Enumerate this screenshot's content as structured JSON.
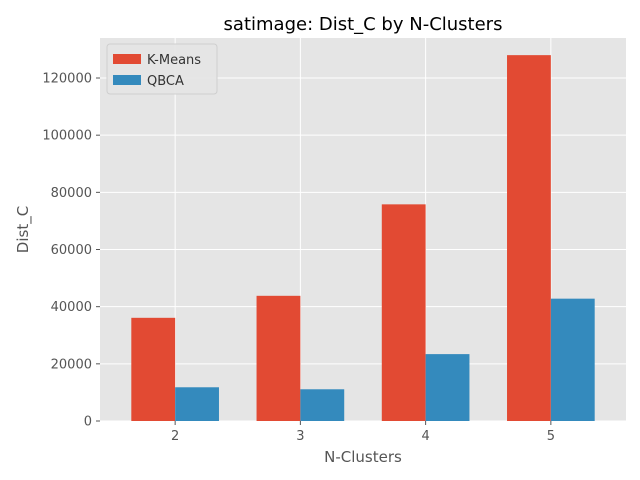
{
  "chart_data": {
    "type": "bar",
    "title": "satimage: Dist_C by N-Clusters",
    "xlabel": "N-Clusters",
    "ylabel": "Dist_C",
    "categories": [
      "2",
      "3",
      "4",
      "5"
    ],
    "series": [
      {
        "name": "K-Means",
        "values": [
          36100,
          43800,
          75800,
          128000
        ],
        "color": "#E24A33"
      },
      {
        "name": "QBCA",
        "values": [
          11800,
          11100,
          23400,
          42800
        ],
        "color": "#348ABD"
      }
    ],
    "ylim": [
      0,
      134000
    ],
    "yticks": [
      0,
      20000,
      40000,
      60000,
      80000,
      100000,
      120000
    ],
    "grid": true,
    "legend_position": "top-left",
    "plot_background": "#E5E5E5",
    "grid_color": "#FFFFFF"
  }
}
